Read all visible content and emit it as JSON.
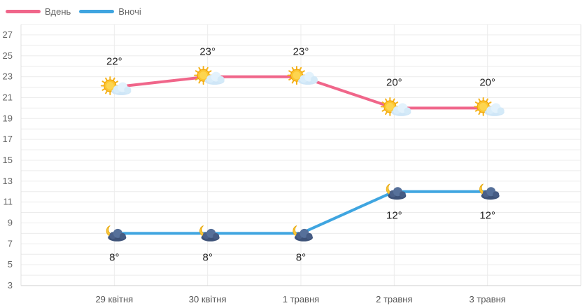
{
  "chart_data": {
    "type": "line",
    "categories": [
      "29 квітня",
      "30 квітня",
      "1 травня",
      "2 травня",
      "3 травня"
    ],
    "series": [
      {
        "name": "Вдень",
        "color": "#f0668a",
        "values": [
          22,
          23,
          23,
          20,
          20
        ],
        "labels": [
          "22°",
          "23°",
          "23°",
          "20°",
          "20°"
        ],
        "icon": "sun-cloud-icon"
      },
      {
        "name": "Вночі",
        "color": "#3fa5e0",
        "values": [
          8,
          8,
          8,
          12,
          12
        ],
        "labels": [
          "8°",
          "8°",
          "8°",
          "12°",
          "12°"
        ],
        "icon": "moon-cloud-icon"
      }
    ],
    "ylim": [
      3,
      28
    ],
    "yticks": [
      "3",
      "5",
      "7",
      "9",
      "11",
      "13",
      "15",
      "17",
      "19",
      "21",
      "23",
      "25",
      "27"
    ],
    "grid": true,
    "legend": "top-left"
  }
}
